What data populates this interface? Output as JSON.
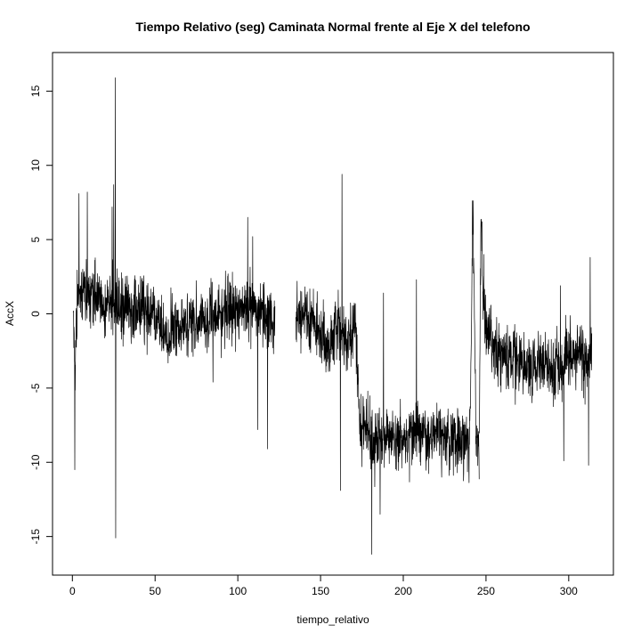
{
  "chart_data": {
    "type": "line",
    "title": "Tiempo Relativo (seg) Caminata Normal frente al Eje X del telefono",
    "xlabel": "tiempo_relativo",
    "ylabel": "AccX",
    "xlim": [
      -12,
      327
    ],
    "ylim": [
      -17.6,
      17.6
    ],
    "xticks": [
      0,
      50,
      100,
      150,
      200,
      250,
      300
    ],
    "xtick_labels": [
      "0",
      "50",
      "100",
      "150",
      "200",
      "250",
      "300"
    ],
    "yticks": [
      -15,
      -10,
      -5,
      0,
      5,
      10,
      15
    ],
    "ytick_labels": [
      "-15",
      "-10",
      "-5",
      "0",
      "5",
      "10",
      "15"
    ],
    "grid": false,
    "line_color": "#000000",
    "series": [
      {
        "segments": [
          {
            "x_start": 0.5,
            "x_end": 122.5,
            "trend": [
              [
                0.5,
                -0.5
              ],
              [
                1.5,
                -4
              ],
              [
                3,
                1
              ],
              [
                10,
                1.4
              ],
              [
                20,
                0.9
              ],
              [
                30,
                0.6
              ],
              [
                45,
                0
              ],
              [
                55,
                -1
              ],
              [
                60,
                -1.2
              ],
              [
                70,
                -0.7
              ],
              [
                80,
                -0.5
              ],
              [
                90,
                0.2
              ],
              [
                100,
                0.4
              ],
              [
                110,
                0.5
              ],
              [
                115,
                0
              ],
              [
                122.5,
                -0.4
              ]
            ],
            "spikes": [
              [
                1.5,
                -10.5
              ],
              [
                4,
                8.1
              ],
              [
                9,
                8.2
              ],
              [
                24,
                7.2
              ],
              [
                25,
                8.7
              ],
              [
                26,
                15.9
              ],
              [
                26.2,
                -15.1
              ],
              [
                106,
                6.5
              ],
              [
                109,
                5.2
              ],
              [
                112,
                -7.8
              ],
              [
                118,
                -9.1
              ],
              [
                85,
                -4.6
              ]
            ]
          },
          {
            "x_start": 135,
            "x_end": 171,
            "trend": [
              [
                135,
                -0.2
              ],
              [
                145,
                -0.5
              ],
              [
                150,
                -1.4
              ],
              [
                155,
                -2.5
              ],
              [
                160,
                -1
              ],
              [
                165,
                -1.8
              ],
              [
                171,
                -1
              ]
            ],
            "spikes": [
              [
                163,
                9.4
              ],
              [
                162,
                -11.9
              ],
              [
                148,
                1.5
              ]
            ]
          },
          {
            "x_start": 171,
            "x_end": 246,
            "trend": [
              [
                171,
                -1
              ],
              [
                174,
                -7
              ],
              [
                180,
                -8.6
              ],
              [
                190,
                -8.3
              ],
              [
                200,
                -8.5
              ],
              [
                210,
                -8.2
              ],
              [
                220,
                -8.2
              ],
              [
                230,
                -8.5
              ],
              [
                240,
                -8.6
              ],
              [
                241,
                -3
              ],
              [
                242,
                7.8
              ],
              [
                244,
                -8.8
              ],
              [
                246,
                -9
              ]
            ],
            "spikes": [
              [
                181,
                -16.2
              ],
              [
                186,
                -13.5
              ],
              [
                188,
                1.4
              ],
              [
                208,
                2.3
              ],
              [
                175,
                -10.3
              ]
            ]
          },
          {
            "x_start": 246,
            "x_end": 314,
            "trend": [
              [
                246,
                -8
              ],
              [
                247,
                7.5
              ],
              [
                248,
                2
              ],
              [
                250,
                -0.8
              ],
              [
                255,
                -2.5
              ],
              [
                260,
                -2.8
              ],
              [
                270,
                -3.3
              ],
              [
                280,
                -3.6
              ],
              [
                290,
                -3.4
              ],
              [
                300,
                -3.2
              ],
              [
                305,
                -2.7
              ],
              [
                310,
                -3.2
              ],
              [
                314,
                -2.8
              ]
            ],
            "spikes": [
              [
                297,
                -9.9
              ],
              [
                312,
                -10.2
              ],
              [
                313,
                3.8
              ],
              [
                295,
                1.9
              ]
            ]
          }
        ]
      }
    ]
  }
}
